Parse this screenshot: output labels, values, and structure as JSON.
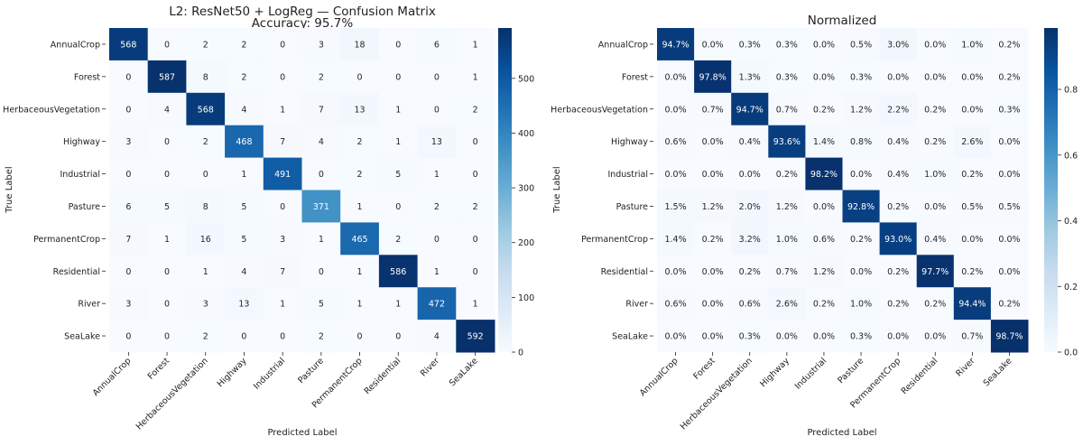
{
  "chart_data": [
    {
      "type": "heatmap",
      "title": "L2: ResNet50 + LogReg — Confusion Matrix",
      "subtitle": "Accuracy: 95.7%",
      "xlabel": "Predicted Label",
      "ylabel": "True Label",
      "colormap": "Blues",
      "colorbar": {
        "range": [
          0,
          592
        ],
        "ticks": [
          0,
          100,
          200,
          300,
          400,
          500
        ]
      },
      "categories": [
        "AnnualCrop",
        "Forest",
        "HerbaceousVegetation",
        "Highway",
        "Industrial",
        "Pasture",
        "PermanentCrop",
        "Residential",
        "River",
        "SeaLake"
      ],
      "values": [
        [
          568,
          0,
          2,
          2,
          0,
          3,
          18,
          0,
          6,
          1
        ],
        [
          0,
          587,
          8,
          2,
          0,
          2,
          0,
          0,
          0,
          1
        ],
        [
          0,
          4,
          568,
          4,
          1,
          7,
          13,
          1,
          0,
          2
        ],
        [
          3,
          0,
          2,
          468,
          7,
          4,
          2,
          1,
          13,
          0
        ],
        [
          0,
          0,
          0,
          1,
          491,
          0,
          2,
          5,
          1,
          0
        ],
        [
          6,
          5,
          8,
          5,
          0,
          371,
          1,
          0,
          2,
          2
        ],
        [
          7,
          1,
          16,
          5,
          3,
          1,
          465,
          2,
          0,
          0
        ],
        [
          0,
          0,
          1,
          4,
          7,
          0,
          1,
          586,
          1,
          0
        ],
        [
          3,
          0,
          3,
          13,
          1,
          5,
          1,
          1,
          472,
          1
        ],
        [
          0,
          0,
          2,
          0,
          0,
          2,
          0,
          0,
          4,
          592
        ]
      ]
    },
    {
      "type": "heatmap",
      "title": "Normalized",
      "xlabel": "Predicted Label",
      "ylabel": "True Label",
      "colormap": "Blues",
      "value_format": "percent",
      "colorbar": {
        "range": [
          0,
          0.987
        ],
        "ticks": [
          0.0,
          0.2,
          0.4,
          0.6,
          0.8
        ]
      },
      "categories": [
        "AnnualCrop",
        "Forest",
        "HerbaceousVegetation",
        "Highway",
        "Industrial",
        "Pasture",
        "PermanentCrop",
        "Residential",
        "River",
        "SeaLake"
      ],
      "values": [
        [
          94.7,
          0.0,
          0.3,
          0.3,
          0.0,
          0.5,
          3.0,
          0.0,
          1.0,
          0.2
        ],
        [
          0.0,
          97.8,
          1.3,
          0.3,
          0.0,
          0.3,
          0.0,
          0.0,
          0.0,
          0.2
        ],
        [
          0.0,
          0.7,
          94.7,
          0.7,
          0.2,
          1.2,
          2.2,
          0.2,
          0.0,
          0.3
        ],
        [
          0.6,
          0.0,
          0.4,
          93.6,
          1.4,
          0.8,
          0.4,
          0.2,
          2.6,
          0.0
        ],
        [
          0.0,
          0.0,
          0.0,
          0.2,
          98.2,
          0.0,
          0.4,
          1.0,
          0.2,
          0.0
        ],
        [
          1.5,
          1.2,
          2.0,
          1.2,
          0.0,
          92.8,
          0.2,
          0.0,
          0.5,
          0.5
        ],
        [
          1.4,
          0.2,
          3.2,
          1.0,
          0.6,
          0.2,
          93.0,
          0.4,
          0.0,
          0.0
        ],
        [
          0.0,
          0.0,
          0.2,
          0.7,
          1.2,
          0.0,
          0.2,
          97.7,
          0.2,
          0.0
        ],
        [
          0.6,
          0.0,
          0.6,
          2.6,
          0.2,
          1.0,
          0.2,
          0.2,
          94.4,
          0.2
        ],
        [
          0.0,
          0.0,
          0.3,
          0.0,
          0.0,
          0.3,
          0.0,
          0.0,
          0.7,
          98.7
        ]
      ]
    }
  ]
}
